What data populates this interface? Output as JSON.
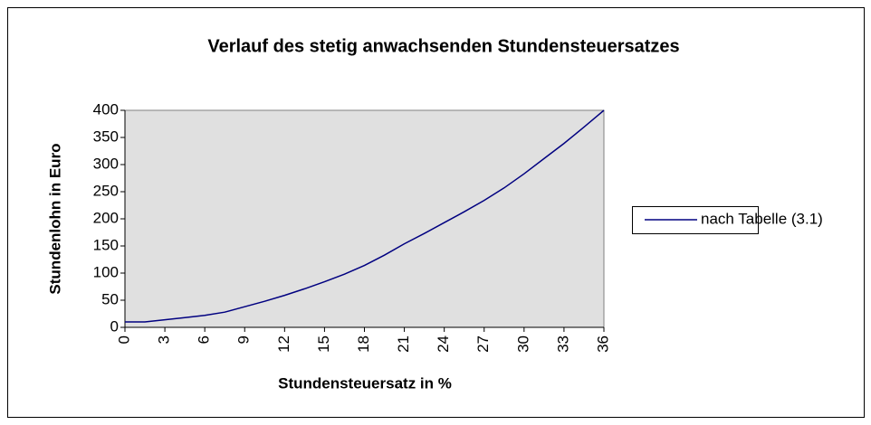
{
  "chart_data": {
    "type": "line",
    "title": "Verlauf des stetig anwachsenden Stundensteuersatzes",
    "x_label": "Stundensteuersatz in %",
    "y_label": "Stundenlohn in Euro",
    "x": [
      0,
      1.5,
      3,
      4.5,
      6,
      7.5,
      9,
      10.5,
      12,
      13.5,
      15,
      16.5,
      18,
      19.5,
      21,
      22.5,
      24,
      25.5,
      27,
      28.5,
      30,
      31.5,
      33,
      34.5,
      36
    ],
    "series": [
      {
        "name": "nach Tabelle (3.1)",
        "color": "#000080",
        "values": [
          10,
          10,
          14,
          18,
          22,
          28,
          38,
          48,
          59,
          71,
          84,
          98,
          114,
          133,
          154,
          173,
          193,
          213,
          234,
          257,
          283,
          311,
          339,
          369,
          400
        ]
      }
    ],
    "xlim": [
      0,
      36
    ],
    "xticks": [
      0,
      3,
      6,
      9,
      12,
      15,
      18,
      21,
      24,
      27,
      30,
      33,
      36
    ],
    "ylim": [
      0,
      400
    ],
    "yticks": [
      0,
      50,
      100,
      150,
      200,
      250,
      300,
      350,
      400
    ],
    "legend": "right"
  }
}
